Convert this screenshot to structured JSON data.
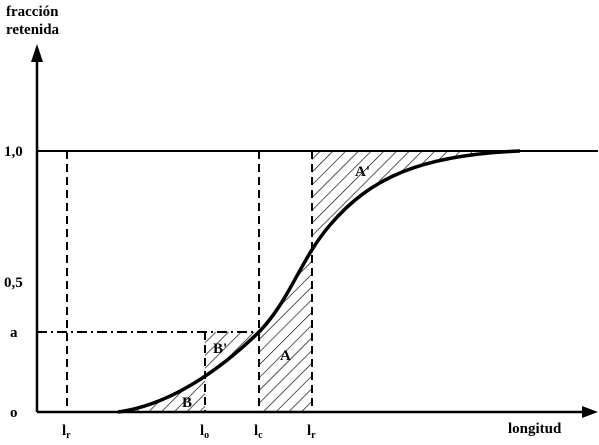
{
  "y_axis": {
    "title_lines": [
      "fracción",
      "retenida"
    ],
    "tick_labels": [
      "1,0",
      "0,5",
      "a",
      "o"
    ]
  },
  "x_axis": {
    "title": "longitud",
    "tick_labels": [
      {
        "base": "l",
        "sub": "r"
      },
      {
        "base": "l",
        "sub": "o"
      },
      {
        "base": "l",
        "sub": "c"
      },
      {
        "base": "l",
        "sub": "r"
      }
    ]
  },
  "regions": [
    "A'",
    "A",
    "B'",
    "B"
  ]
}
